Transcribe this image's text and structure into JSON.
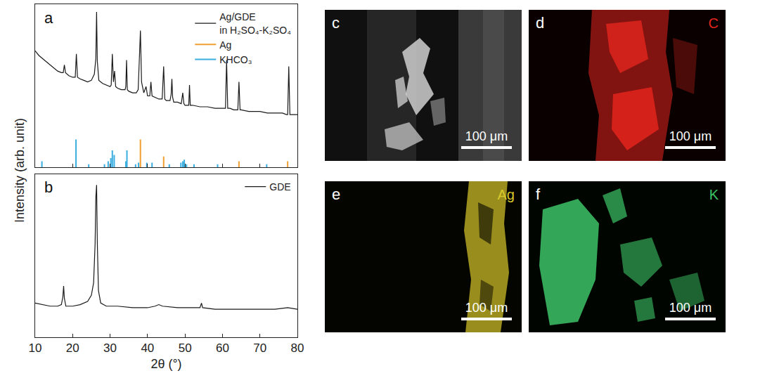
{
  "chart_data": [
    {
      "panel": "a",
      "type": "line",
      "ylabel": "Intensity (arb. unit)",
      "xlim": [
        10,
        80
      ],
      "xticks": [
        10,
        20,
        30,
        40,
        50,
        60,
        70,
        80
      ],
      "ylim": [
        0,
        105
      ],
      "yticks": [],
      "tick_labels": false,
      "legend": "upper right",
      "series": [
        {
          "name": "Ag/GDE in H₂SO₄-K₂SO₄",
          "type": "line",
          "color": "#1a1a1a",
          "x": [
            10,
            11,
            12,
            13,
            14,
            15,
            16,
            17,
            17.5,
            17.8,
            18.1,
            19,
            20,
            20.7,
            21,
            21.3,
            22,
            23,
            24,
            25,
            25.8,
            26.2,
            26.4,
            26.6,
            27,
            28,
            29,
            30,
            30.3,
            30.6,
            30.9,
            31.2,
            31.5,
            32,
            33,
            34,
            34.2,
            34.4,
            34.6,
            35,
            36,
            37,
            37.5,
            37.8,
            38.1,
            38.4,
            39,
            39.6,
            40,
            40.6,
            40.9,
            41.2,
            42,
            43,
            43.9,
            44.3,
            44.6,
            45,
            46,
            46.3,
            46.5,
            46.7,
            47,
            48,
            49,
            49.4,
            49.7,
            50,
            51,
            51.2,
            51.4,
            52,
            54,
            56,
            58,
            60,
            60.8,
            61.1,
            61.4,
            62,
            63,
            64.1,
            64.4,
            64.7,
            65,
            67,
            70,
            72,
            74,
            76,
            77.1,
            77.4,
            77.7,
            78,
            80
          ],
          "values": [
            75,
            72,
            70,
            68,
            66,
            64,
            62,
            61,
            61,
            66,
            61,
            59,
            58,
            58,
            73,
            58,
            57,
            56,
            55,
            56,
            60,
            70,
            100,
            68,
            56,
            54,
            53,
            52,
            53,
            73,
            55,
            62,
            52,
            51,
            50,
            50,
            52,
            69,
            50,
            49,
            48,
            48,
            50,
            72,
            88,
            55,
            48,
            52,
            46,
            46,
            55,
            46,
            45,
            44,
            44,
            65,
            44,
            43,
            43,
            47,
            57,
            45,
            42,
            42,
            41,
            48,
            41,
            40,
            40,
            53,
            40,
            40,
            39,
            39,
            38,
            38,
            38,
            69,
            38,
            38,
            37,
            37,
            55,
            37,
            37,
            36,
            36,
            35,
            35,
            35,
            34,
            34,
            65,
            34,
            34
          ]
        },
        {
          "name": "Ag",
          "type": "stick",
          "color": "#f0a030",
          "x": [
            38.1,
            44.3,
            64.4,
            77.4
          ],
          "values": [
            18,
            7,
            4,
            4
          ]
        },
        {
          "name": "KHCO₃",
          "type": "stick",
          "color": "#3aaee0",
          "x": [
            11.8,
            20.9,
            24.3,
            28.5,
            29.5,
            30.2,
            30.6,
            31.1,
            34.2,
            34.5,
            36.8,
            37.6,
            39.8,
            41.2,
            45.8,
            48.9,
            49.4,
            49.8,
            50.4,
            52.4,
            58.7,
            71.8
          ],
          "values": [
            4,
            18,
            2,
            2,
            4,
            6,
            11,
            8,
            4,
            11,
            2,
            3,
            3,
            3,
            2,
            3,
            4,
            5,
            2,
            2,
            2,
            2
          ]
        }
      ]
    },
    {
      "panel": "b",
      "type": "line",
      "xlabel": "2θ (°)",
      "xlim": [
        10,
        80
      ],
      "xticks": [
        10,
        20,
        30,
        40,
        50,
        60,
        70,
        80
      ],
      "ylim": [
        0,
        105
      ],
      "yticks": [],
      "tick_labels": "x",
      "legend": "upper right",
      "series": [
        {
          "name": "GDE",
          "type": "line",
          "color": "#1a1a1a",
          "x": [
            10,
            12,
            14,
            16,
            17,
            17.4,
            17.6,
            17.8,
            18.2,
            20,
            22,
            24,
            25,
            25.6,
            26,
            26.2,
            26.4,
            26.6,
            26.9,
            27.5,
            29,
            32,
            36,
            40,
            42,
            43,
            44,
            48,
            52,
            54,
            54.4,
            54.7,
            58,
            62,
            66,
            70,
            74,
            77.4,
            80
          ],
          "values": [
            22,
            21,
            20,
            20,
            21,
            26,
            33,
            25,
            20,
            20,
            21,
            23,
            27,
            35,
            60,
            90,
            98,
            60,
            30,
            22,
            20,
            20,
            19,
            19,
            20,
            21,
            20,
            19,
            19,
            19,
            22,
            19,
            18,
            18,
            18,
            18,
            18,
            19,
            18
          ]
        }
      ]
    }
  ],
  "images": [
    {
      "panel": "c",
      "scale_bar": "100 μm"
    },
    {
      "panel": "d",
      "element": "C",
      "color": "#e3251d",
      "scale_bar": "100 μm"
    },
    {
      "panel": "e",
      "element": "Ag",
      "color": "#d8c82a",
      "scale_bar": "100 μm"
    },
    {
      "panel": "f",
      "element": "K",
      "color": "#3cc466",
      "scale_bar": "100 μm"
    }
  ]
}
